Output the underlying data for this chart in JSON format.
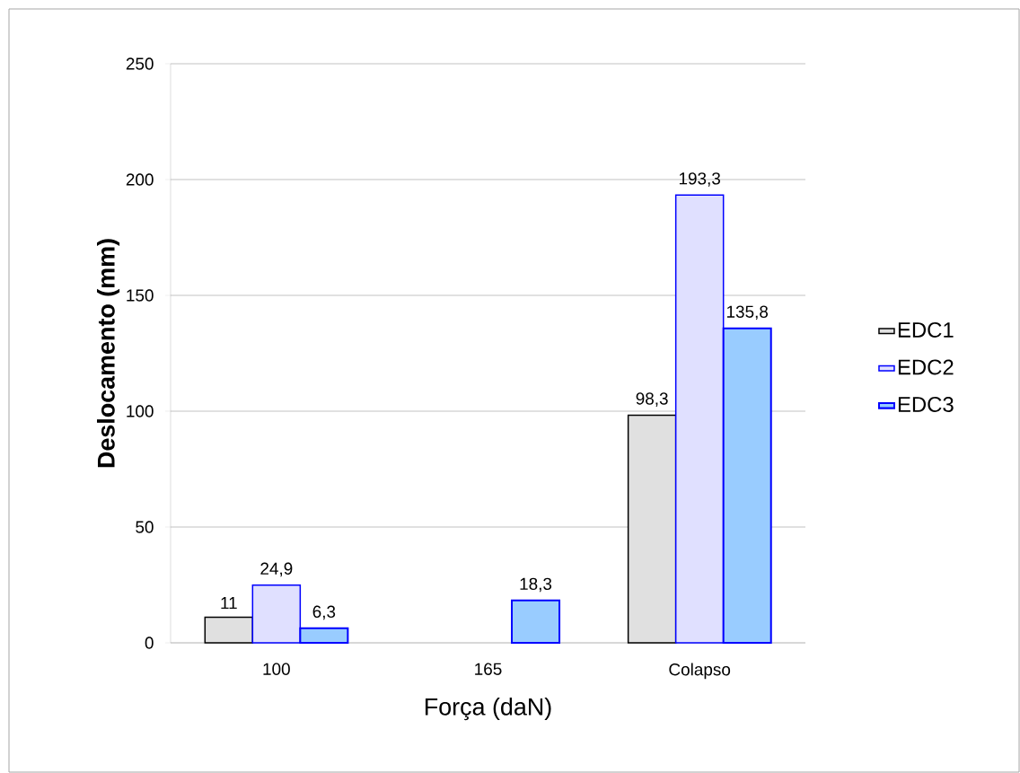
{
  "chart_data": {
    "type": "bar",
    "xlabel": "Força (daN)",
    "ylabel": "Deslocamento (mm)",
    "categories": [
      "100",
      "165",
      "Colapso"
    ],
    "series": [
      {
        "name": "EDC1",
        "color": "#000000",
        "values": [
          11,
          null,
          98.3
        ],
        "value_labels": [
          "11",
          null,
          "98,3"
        ]
      },
      {
        "name": "EDC2",
        "color": "#0000ff",
        "values": [
          24.9,
          null,
          193.3
        ],
        "value_labels": [
          "24,9",
          null,
          "193,3"
        ]
      },
      {
        "name": "EDC3",
        "color": "#99ccff",
        "values": [
          6.3,
          18.3,
          135.8
        ],
        "value_labels": [
          "6,3",
          "18,3",
          "135,8"
        ]
      }
    ],
    "ylim": [
      0,
      250
    ],
    "yticks": [
      0,
      50,
      100,
      150,
      200,
      250
    ],
    "grid": "y",
    "legend": "right"
  }
}
